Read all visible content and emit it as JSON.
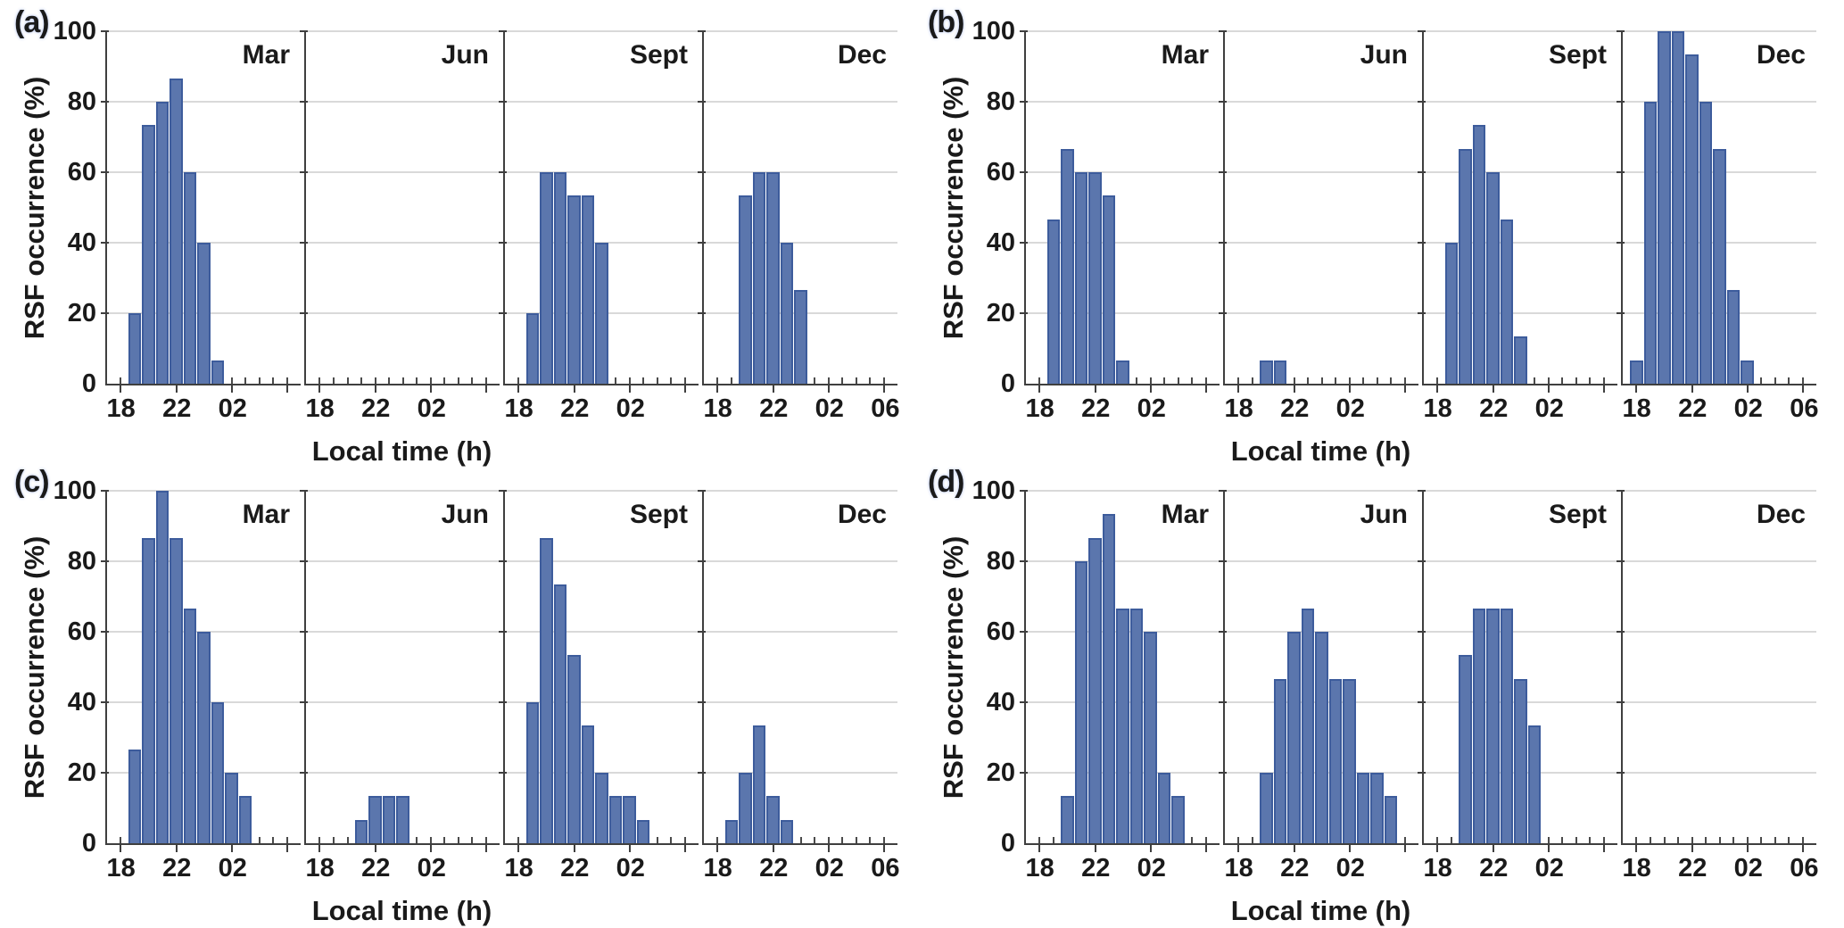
{
  "figure": {
    "ylabel": "RSF occurrence (%)",
    "xlabel": "Local time (h)",
    "y_tick_labels": [
      "0",
      "20",
      "40",
      "60",
      "80",
      "100"
    ],
    "x_ticks": [
      {
        "hour": 18,
        "label": "18"
      },
      {
        "hour": 22,
        "label": "22"
      },
      {
        "hour": 26,
        "label": "02"
      },
      {
        "hour": 30,
        "label": "06"
      }
    ],
    "colors": {
      "bar_fill": "#5B76AD",
      "bar_edge": "#3D5C9C",
      "grid": "#D9D9D9",
      "axis": "#3F3F3F",
      "text": "#1A1A1A",
      "background": "#FFFFFF"
    }
  },
  "chart_data": {
    "type": "bar",
    "xlabel": "Local time (h)",
    "ylabel": "RSF occurrence (%)",
    "ylim": [
      0,
      100
    ],
    "y_ticks": [
      0,
      20,
      40,
      60,
      80,
      100
    ],
    "x_axis_hours": [
      17,
      31
    ],
    "x_tick_hours": [
      18,
      22,
      26,
      30
    ],
    "x_tick_labels": [
      "18",
      "22",
      "02",
      "06"
    ],
    "bar_width_hours": 1,
    "values_unit": "percent",
    "grid": "horizontal",
    "panels": [
      {
        "letter": "(a)",
        "subplots": [
          {
            "month": "Mar",
            "bars": [
              [
                19,
                20
              ],
              [
                20,
                73.3
              ],
              [
                21,
                80
              ],
              [
                22,
                86.7
              ],
              [
                23,
                60
              ],
              [
                24,
                40
              ],
              [
                25,
                6.7
              ]
            ]
          },
          {
            "month": "Jun",
            "bars": []
          },
          {
            "month": "Sept",
            "bars": [
              [
                19,
                20
              ],
              [
                20,
                60
              ],
              [
                21,
                60
              ],
              [
                22,
                53.3
              ],
              [
                23,
                53.3
              ],
              [
                24,
                40
              ]
            ]
          },
          {
            "month": "Dec",
            "bars": [
              [
                20,
                53.3
              ],
              [
                21,
                60
              ],
              [
                22,
                60
              ],
              [
                23,
                40
              ],
              [
                24,
                26.7
              ]
            ]
          }
        ]
      },
      {
        "letter": "(b)",
        "subplots": [
          {
            "month": "Mar",
            "bars": [
              [
                19,
                46.7
              ],
              [
                20,
                66.7
              ],
              [
                21,
                60
              ],
              [
                22,
                60
              ],
              [
                23,
                53.3
              ],
              [
                24,
                6.7
              ]
            ]
          },
          {
            "month": "Jun",
            "bars": [
              [
                20,
                6.7
              ],
              [
                21,
                6.7
              ]
            ]
          },
          {
            "month": "Sept",
            "bars": [
              [
                19,
                40
              ],
              [
                20,
                66.7
              ],
              [
                21,
                73.3
              ],
              [
                22,
                60
              ],
              [
                23,
                46.7
              ],
              [
                24,
                13.3
              ]
            ]
          },
          {
            "month": "Dec",
            "bars": [
              [
                18,
                6.7
              ],
              [
                19,
                80
              ],
              [
                20,
                100
              ],
              [
                21,
                100
              ],
              [
                22,
                93.3
              ],
              [
                23,
                80
              ],
              [
                24,
                66.7
              ],
              [
                25,
                26.7
              ],
              [
                26,
                6.7
              ]
            ]
          }
        ]
      },
      {
        "letter": "(c)",
        "subplots": [
          {
            "month": "Mar",
            "bars": [
              [
                19,
                26.7
              ],
              [
                20,
                86.7
              ],
              [
                21,
                100
              ],
              [
                22,
                86.7
              ],
              [
                23,
                66.7
              ],
              [
                24,
                60
              ],
              [
                25,
                40
              ],
              [
                26,
                20
              ],
              [
                27,
                13.3
              ]
            ]
          },
          {
            "month": "Jun",
            "bars": [
              [
                21,
                6.7
              ],
              [
                22,
                13.3
              ],
              [
                23,
                13.3
              ],
              [
                24,
                13.3
              ]
            ]
          },
          {
            "month": "Sept",
            "bars": [
              [
                19,
                40
              ],
              [
                20,
                86.7
              ],
              [
                21,
                73.3
              ],
              [
                22,
                53.3
              ],
              [
                23,
                33.3
              ],
              [
                24,
                20
              ],
              [
                25,
                13.3
              ],
              [
                26,
                13.3
              ],
              [
                27,
                6.7
              ]
            ]
          },
          {
            "month": "Dec",
            "bars": [
              [
                19,
                6.7
              ],
              [
                20,
                20
              ],
              [
                21,
                33.3
              ],
              [
                22,
                13.3
              ],
              [
                23,
                6.7
              ]
            ]
          }
        ]
      },
      {
        "letter": "(d)",
        "subplots": [
          {
            "month": "Mar",
            "bars": [
              [
                20,
                13.3
              ],
              [
                21,
                80
              ],
              [
                22,
                86.7
              ],
              [
                23,
                93.3
              ],
              [
                24,
                66.7
              ],
              [
                25,
                66.7
              ],
              [
                26,
                60
              ],
              [
                27,
                20
              ],
              [
                28,
                13.3
              ]
            ]
          },
          {
            "month": "Jun",
            "bars": [
              [
                20,
                20
              ],
              [
                21,
                46.7
              ],
              [
                22,
                60
              ],
              [
                23,
                66.7
              ],
              [
                24,
                60
              ],
              [
                25,
                46.7
              ],
              [
                26,
                46.7
              ],
              [
                27,
                20
              ],
              [
                28,
                20
              ],
              [
                29,
                13.3
              ]
            ]
          },
          {
            "month": "Sept",
            "bars": [
              [
                20,
                53.3
              ],
              [
                21,
                66.7
              ],
              [
                22,
                66.7
              ],
              [
                23,
                66.7
              ],
              [
                24,
                46.7
              ],
              [
                25,
                33.3
              ]
            ]
          },
          {
            "month": "Dec",
            "bars": []
          }
        ]
      }
    ]
  }
}
